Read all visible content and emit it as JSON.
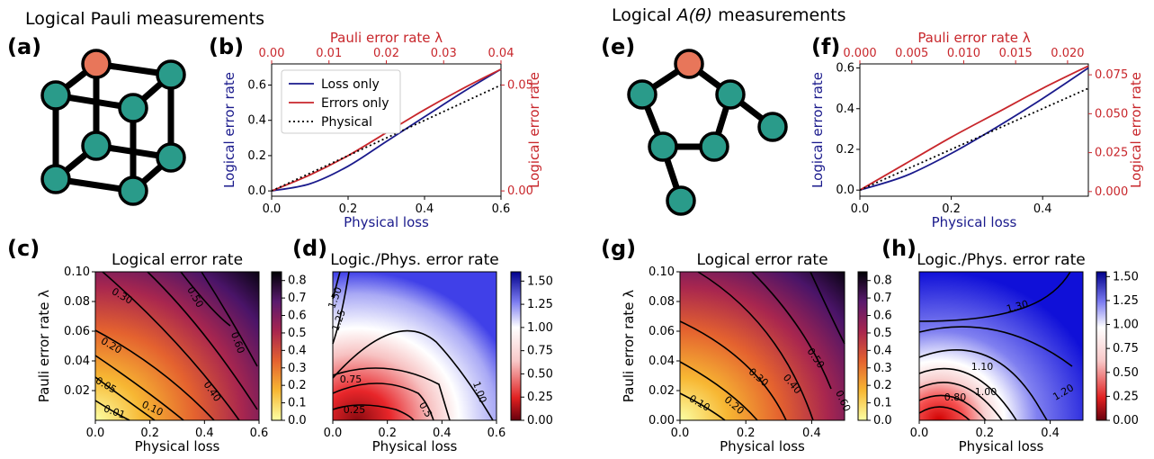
{
  "headers": {
    "pauli": "Logical Pauli measurements",
    "atheta_prefix": "Logical ",
    "atheta_math": "A(θ)",
    "atheta_suffix": " measurements"
  },
  "panel_labels": {
    "a": "(a)",
    "b": "(b)",
    "c": "(c)",
    "d": "(d)",
    "e": "(e)",
    "f": "(f)",
    "g": "(g)",
    "h": "(h)"
  },
  "colors": {
    "loss_line": "#1a1a8c",
    "error_line": "#c8262b",
    "node_teal": "#2a9b8a",
    "node_orange": "#e8765a",
    "axis_blue": "#1a1a8c",
    "axis_red": "#c8262b"
  },
  "graphs": {
    "cube": {
      "nodes": 8,
      "edges": 12,
      "special_node_color": "orange"
    },
    "pentagon": {
      "nodes": 7,
      "edges": 7,
      "special_node_color": "orange"
    }
  },
  "chart_data": [
    {
      "id": "b",
      "type": "line",
      "xlabel": "Physical loss",
      "ylabel": "Logical error rate",
      "top_xlabel": "Pauli error rate λ",
      "right_ylabel": "Logical error rate",
      "xlim": [
        0,
        0.6
      ],
      "ylim": [
        -0.03,
        0.72
      ],
      "top_xlim": [
        0,
        0.04
      ],
      "right_ylim": [
        -0.0025,
        0.06
      ],
      "xticks": [
        "0.0",
        "0.2",
        "0.4",
        "0.6"
      ],
      "yticks": [
        "0.0",
        "0.2",
        "0.4",
        "0.6"
      ],
      "top_xticks": [
        "0.00",
        "0.01",
        "0.02",
        "0.03",
        "0.04"
      ],
      "right_yticks": [
        "0.00",
        "0.05"
      ],
      "legend": {
        "position": "upper-left",
        "entries": [
          "Loss only",
          "Errors only",
          "Physical"
        ]
      },
      "series": [
        {
          "name": "Loss only",
          "style": "solid",
          "color": "loss",
          "x": [
            0,
            0.1,
            0.2,
            0.3,
            0.4,
            0.5,
            0.6
          ],
          "y": [
            0,
            0.04,
            0.14,
            0.28,
            0.42,
            0.56,
            0.69
          ]
        },
        {
          "name": "Errors only",
          "style": "solid",
          "color": "error",
          "x": [
            0,
            0.1,
            0.2,
            0.3,
            0.4,
            0.5,
            0.6
          ],
          "y": [
            0,
            0.09,
            0.2,
            0.33,
            0.46,
            0.58,
            0.69
          ]
        },
        {
          "name": "Physical",
          "style": "dotted",
          "color": "black",
          "x": [
            0,
            0.6
          ],
          "y": [
            0,
            0.6
          ]
        }
      ]
    },
    {
      "id": "c",
      "type": "heatmap",
      "title": "Logical error rate",
      "xlabel": "Physical loss",
      "ylabel": "Pauli error rate λ",
      "xlim": [
        0,
        0.6
      ],
      "ylim": [
        0,
        0.1
      ],
      "xticks": [
        "0.0",
        "0.2",
        "0.4",
        "0.6"
      ],
      "yticks": [
        "0.02",
        "0.04",
        "0.06",
        "0.08",
        "0.10"
      ],
      "colorbar": {
        "ticks": [
          "0.0",
          "0.1",
          "0.2",
          "0.3",
          "0.4",
          "0.5",
          "0.6",
          "0.7",
          "0.8"
        ],
        "range": [
          0,
          0.85
        ],
        "colormap": "yellow-orange-red-purple-black"
      },
      "contours": [
        {
          "label": "0.01",
          "level": 0.01
        },
        {
          "label": "0.05",
          "level": 0.05
        },
        {
          "label": "0.10",
          "level": 0.1
        },
        {
          "label": "0.20",
          "level": 0.2
        },
        {
          "label": "0.30",
          "level": 0.3
        },
        {
          "label": "0.40",
          "level": 0.4
        },
        {
          "label": "0.50",
          "level": 0.5
        },
        {
          "label": "0.60",
          "level": 0.6
        }
      ]
    },
    {
      "id": "d",
      "type": "heatmap",
      "title": "Logic./Phys. error rate",
      "xlabel": "Physical loss",
      "ylabel": "",
      "xlim": [
        0,
        0.6
      ],
      "ylim": [
        0,
        0.1
      ],
      "xticks": [
        "0.0",
        "0.2",
        "0.4",
        "0.6"
      ],
      "colorbar": {
        "ticks": [
          "0.00",
          "0.25",
          "0.50",
          "0.75",
          "1.00",
          "1.25",
          "1.50"
        ],
        "range": [
          0,
          1.6
        ],
        "colormap": "red-white-blue"
      },
      "contours": [
        {
          "label": "0.25",
          "level": 0.25
        },
        {
          "label": "0.5",
          "level": 0.5
        },
        {
          "label": "0.75",
          "level": 0.75
        },
        {
          "label": "1.00",
          "level": 1.0
        },
        {
          "label": "1.25",
          "level": 1.25
        },
        {
          "label": "1.50",
          "level": 1.5
        }
      ]
    },
    {
      "id": "f",
      "type": "line",
      "xlabel": "Physical loss",
      "ylabel": "Logical error rate",
      "top_xlabel": "Pauli error rate λ",
      "right_ylabel": "Logical error rate",
      "xlim": [
        0,
        0.5
      ],
      "ylim": [
        -0.03,
        0.62
      ],
      "top_xlim": [
        0,
        0.022
      ],
      "right_ylim": [
        -0.003,
        0.082
      ],
      "xticks": [
        "0.0",
        "0.2",
        "0.4"
      ],
      "yticks": [
        "0.0",
        "0.2",
        "0.4",
        "0.6"
      ],
      "top_xticks": [
        "0.000",
        "0.005",
        "0.010",
        "0.015",
        "0.020"
      ],
      "right_yticks": [
        "0.000",
        "0.025",
        "0.050",
        "0.075"
      ],
      "series": [
        {
          "name": "Loss only",
          "style": "solid",
          "color": "loss",
          "x": [
            0,
            0.1,
            0.2,
            0.3,
            0.4,
            0.5
          ],
          "y": [
            0,
            0.07,
            0.18,
            0.31,
            0.45,
            0.6
          ]
        },
        {
          "name": "Errors only",
          "style": "solid",
          "color": "error",
          "x": [
            0,
            0.1,
            0.2,
            0.3,
            0.4,
            0.5
          ],
          "y": [
            0,
            0.13,
            0.26,
            0.38,
            0.5,
            0.61
          ]
        },
        {
          "name": "Physical",
          "style": "dotted",
          "color": "black",
          "x": [
            0,
            0.5
          ],
          "y": [
            0,
            0.5
          ]
        }
      ]
    },
    {
      "id": "g",
      "type": "heatmap",
      "title": "Logical error rate",
      "xlabel": "Physical loss",
      "ylabel": "Pauli error rate λ",
      "xlim": [
        0,
        0.5
      ],
      "ylim": [
        0,
        0.1
      ],
      "xticks": [
        "0.0",
        "0.2",
        "0.4"
      ],
      "yticks": [
        "0.00",
        "0.02",
        "0.04",
        "0.06",
        "0.08",
        "0.10"
      ],
      "colorbar": {
        "ticks": [
          "0.0",
          "0.1",
          "0.2",
          "0.3",
          "0.4",
          "0.5",
          "0.6",
          "0.7",
          "0.8"
        ],
        "range": [
          0,
          0.85
        ],
        "colormap": "yellow-orange-red-purple-black"
      },
      "contours": [
        {
          "label": "0.10",
          "level": 0.1
        },
        {
          "label": "0.20",
          "level": 0.2
        },
        {
          "label": "0.30",
          "level": 0.3
        },
        {
          "label": "0.40",
          "level": 0.4
        },
        {
          "label": "0.50",
          "level": 0.5
        },
        {
          "label": "0.60",
          "level": 0.6
        }
      ]
    },
    {
      "id": "h",
      "type": "heatmap",
      "title": "Logic./Phys. error rate",
      "xlabel": "Physical loss",
      "ylabel": "",
      "xlim": [
        0,
        0.5
      ],
      "ylim": [
        0,
        0.1
      ],
      "xticks": [
        "0.0",
        "0.2",
        "0.4"
      ],
      "colorbar": {
        "ticks": [
          "0.00",
          "0.25",
          "0.50",
          "0.75",
          "1.00",
          "1.25",
          "1.50"
        ],
        "range": [
          0,
          1.55
        ],
        "colormap": "red-white-blue"
      },
      "contours": [
        {
          "label": "0.80",
          "level": 0.8
        },
        {
          "label": "1.00",
          "level": 1.0
        },
        {
          "label": "1.10",
          "level": 1.1
        },
        {
          "label": "1.20",
          "level": 1.2
        },
        {
          "label": "1.30",
          "level": 1.3
        }
      ]
    }
  ]
}
